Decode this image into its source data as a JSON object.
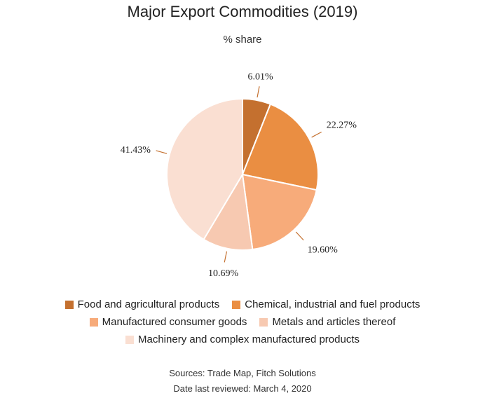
{
  "chart_data": {
    "type": "pie",
    "title": "Major Export Commodities (2019)",
    "subtitle": "% share",
    "slices": [
      {
        "name": "Food and agricultural products",
        "value": 6.01,
        "label": "6.01%",
        "color": "#c4702f"
      },
      {
        "name": "Chemical, industrial and fuel products",
        "value": 22.27,
        "label": "22.27%",
        "color": "#ea8e42"
      },
      {
        "name": "Manufactured consumer goods",
        "value": 19.6,
        "label": "19.60%",
        "color": "#f7ab7a"
      },
      {
        "name": "Metals and articles thereof",
        "value": 10.69,
        "label": "10.69%",
        "color": "#f7c9b1"
      },
      {
        "name": "Machinery and complex manufactured products",
        "value": 41.43,
        "label": "41.43%",
        "color": "#fadfd2"
      }
    ],
    "legend_placement": "bottom",
    "label_line_color": "#c4702f"
  },
  "footer": {
    "sources": "Sources: Trade Map, Fitch Solutions",
    "reviewed": "Date last reviewed: March 4, 2020"
  }
}
